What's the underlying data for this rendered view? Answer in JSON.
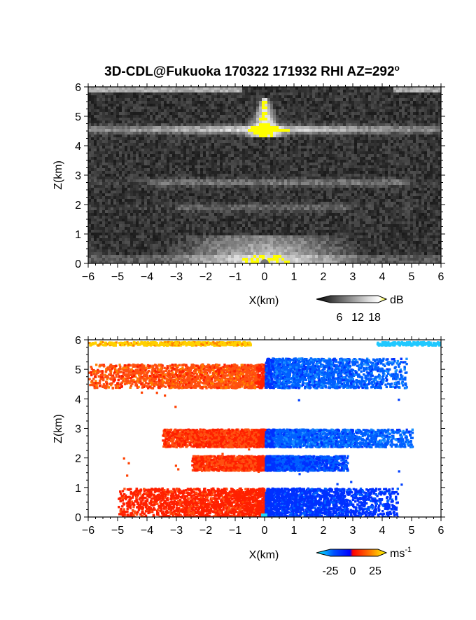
{
  "title": "3D-CDL@Fukuoka 170322 171932 RHI AZ=292",
  "title_superscript": "o",
  "chart_data": [
    {
      "type": "heatmap",
      "name": "reflectivity-panel",
      "xlabel": "X(km)",
      "ylabel": "Z(km)",
      "xlim": [
        -6,
        6
      ],
      "ylim": [
        0,
        6
      ],
      "xticks": [
        "-6",
        "-5",
        "-4",
        "-3",
        "-2",
        "-1",
        "0",
        "1",
        "2",
        "3",
        "4",
        "5",
        "6"
      ],
      "yticks": [
        "0",
        "1",
        "2",
        "3",
        "4",
        "5",
        "6"
      ],
      "colorscale": "grayscale with yellow saturation",
      "colorbar": {
        "unit": "dB",
        "tick_labels": [
          "6",
          "12",
          "18"
        ],
        "range": [
          0,
          20
        ],
        "colors": [
          "#000000",
          "#ffffff",
          "#ffff00"
        ]
      },
      "features": [
        {
          "label": "bright band",
          "x": [
            -6,
            6
          ],
          "z": 4.5,
          "peak_x": 0,
          "peak_z": [
            4.4,
            5.6
          ],
          "saturated": true
        },
        {
          "label": "weak layer",
          "x": [
            -4,
            5
          ],
          "z": 2.8
        },
        {
          "label": "weak layer",
          "x": [
            -3,
            3
          ],
          "z": 1.9
        },
        {
          "label": "near-ground clutter",
          "x": [
            -4,
            4
          ],
          "z": [
            0,
            0.9
          ]
        },
        {
          "label": "top edge returns",
          "x": [
            -6,
            6
          ],
          "z": 5.9
        }
      ]
    },
    {
      "type": "heatmap",
      "name": "velocity-panel",
      "xlabel": "X(km)",
      "ylabel": "Z(km)",
      "xlim": [
        -6,
        6
      ],
      "ylim": [
        0,
        6
      ],
      "xticks": [
        "-6",
        "-5",
        "-4",
        "-3",
        "-2",
        "-1",
        "0",
        "1",
        "2",
        "3",
        "4",
        "5",
        "6"
      ],
      "yticks": [
        "0",
        "1",
        "2",
        "3",
        "4",
        "5",
        "6"
      ],
      "colorscale": "cyan-blue-red-orange-yellow diverging",
      "colorbar": {
        "unit": "ms",
        "unit_superscript": "-1",
        "tick_labels": [
          "-25",
          "0",
          "25"
        ],
        "range": [
          -30,
          30
        ],
        "colors": [
          "#00ffff",
          "#0000ff",
          "#ff0000",
          "#ff8000",
          "#ffff00"
        ]
      },
      "features": [
        {
          "label": "upper layer approaching",
          "x": [
            -6,
            0
          ],
          "z": [
            4.4,
            5.2
          ],
          "velocity": 12
        },
        {
          "label": "upper layer receding",
          "x": [
            0,
            4.8
          ],
          "z": [
            4.4,
            5.4
          ],
          "velocity": -12
        },
        {
          "label": "mid layer approaching",
          "x": [
            -3.5,
            0
          ],
          "z": [
            2.4,
            3.0
          ],
          "velocity": 10
        },
        {
          "label": "mid layer receding",
          "x": [
            0,
            5
          ],
          "z": [
            2.4,
            3.0
          ],
          "velocity": -12
        },
        {
          "label": "lower layer approaching",
          "x": [
            -2.5,
            0
          ],
          "z": [
            1.6,
            2.1
          ],
          "velocity": 10
        },
        {
          "label": "lower layer receding",
          "x": [
            0,
            2.8
          ],
          "z": [
            1.6,
            2.1
          ],
          "velocity": -10
        },
        {
          "label": "boundary layer approaching",
          "x": [
            -5,
            0
          ],
          "z": [
            0,
            1.0
          ],
          "velocity": 8
        },
        {
          "label": "boundary layer receding",
          "x": [
            0,
            4.5
          ],
          "z": [
            0,
            1.0
          ],
          "velocity": -8
        },
        {
          "label": "top edge returns",
          "x": [
            -6,
            -0.5
          ],
          "z": 5.9,
          "velocity": 22
        },
        {
          "label": "top edge returns",
          "x": [
            3.8,
            6
          ],
          "z": 5.9,
          "velocity": -26
        }
      ]
    }
  ]
}
